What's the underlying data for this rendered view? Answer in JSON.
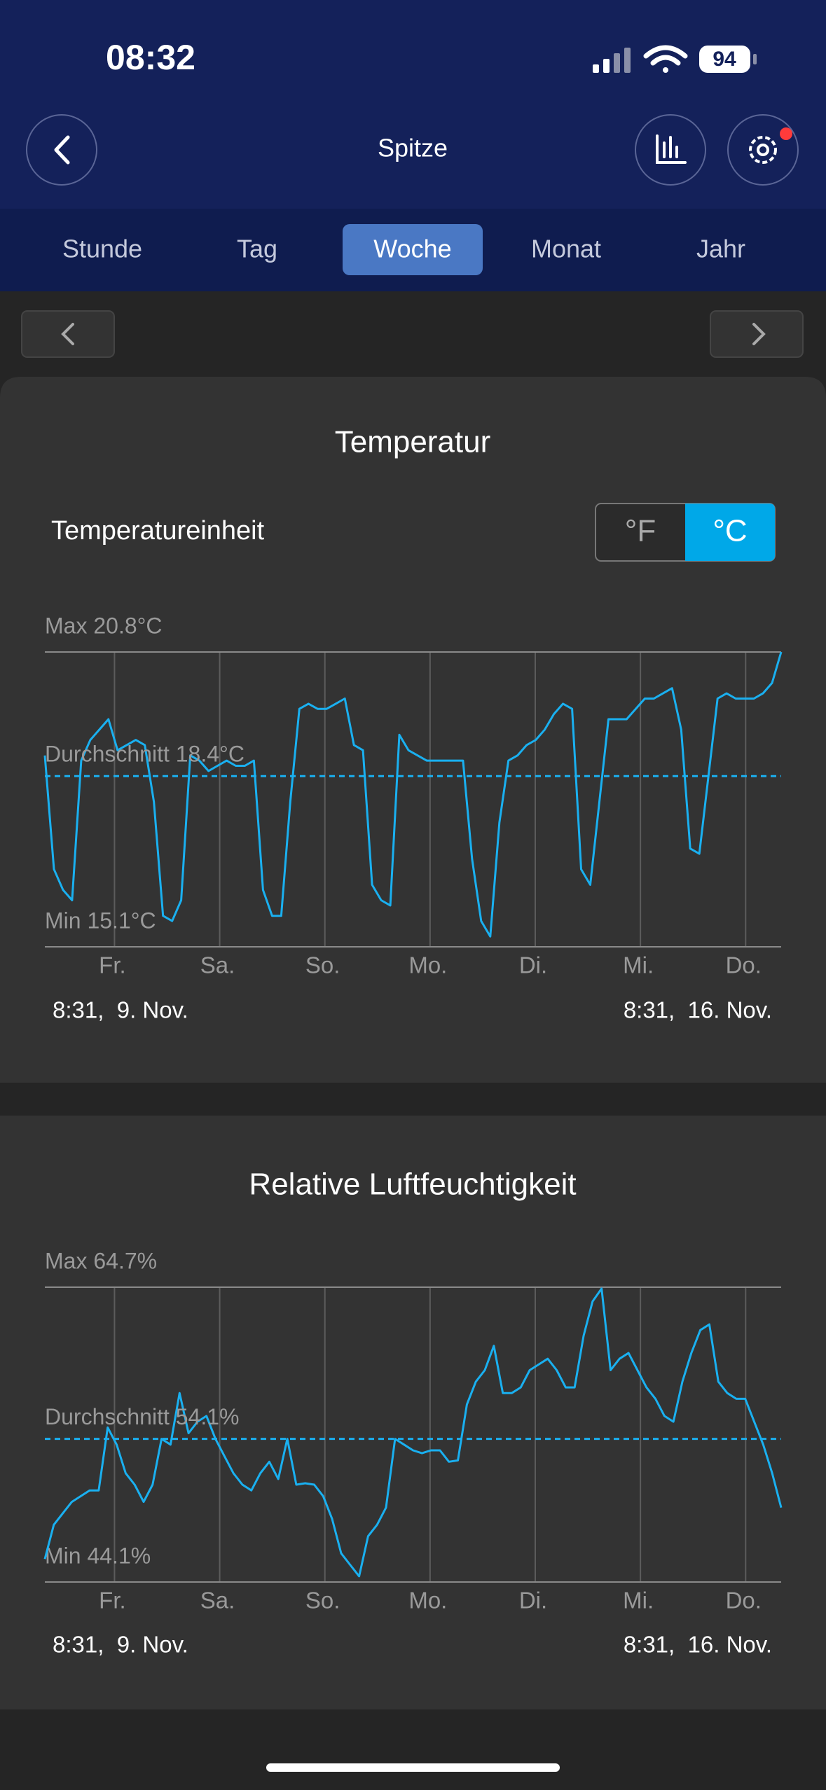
{
  "status": {
    "time": "08:32",
    "battery": 94
  },
  "header": {
    "title": "Spitze"
  },
  "tabs": [
    "Stunde",
    "Tag",
    "Woche",
    "Monat",
    "Jahr"
  ],
  "active_tab": 2,
  "unit_toggle": {
    "label": "Temperatureinheit",
    "options": [
      "°F",
      "°C"
    ],
    "selected": 1
  },
  "chart_data": [
    {
      "type": "line",
      "title": "Temperatur",
      "color": "#1ab0f0",
      "x_labels": [
        "Fr.",
        "Sa.",
        "So.",
        "Mo.",
        "Di.",
        "Mi.",
        "Do."
      ],
      "start_label": "8:31,  9. Nov.",
      "end_label": "8:31,  16. Nov.",
      "ylim": [
        15.1,
        20.8
      ],
      "yticks": [
        {
          "value": 15.1,
          "label": "Min 15.1°C"
        },
        {
          "value": 20.8,
          "label": "Max 20.8°C"
        }
      ],
      "average": {
        "value": 18.4,
        "label": "Durchschnitt 18.4°C"
      },
      "grid": true,
      "values": [
        18.8,
        16.6,
        16.2,
        16.0,
        18.7,
        19.1,
        19.3,
        19.5,
        18.9,
        19.0,
        19.1,
        19.0,
        17.9,
        15.7,
        15.6,
        16.0,
        18.8,
        18.7,
        18.5,
        18.6,
        18.7,
        18.6,
        18.6,
        18.7,
        16.2,
        15.7,
        15.7,
        17.9,
        19.7,
        19.8,
        19.7,
        19.7,
        19.8,
        19.9,
        19.0,
        18.9,
        16.3,
        16.0,
        15.9,
        19.2,
        18.9,
        18.8,
        18.7,
        18.7,
        18.7,
        18.7,
        18.7,
        16.8,
        15.6,
        15.3,
        17.5,
        18.7,
        18.8,
        19.0,
        19.1,
        19.3,
        19.6,
        19.8,
        19.7,
        16.6,
        16.3,
        17.9,
        19.5,
        19.5,
        19.5,
        19.7,
        19.9,
        19.9,
        20.0,
        20.1,
        19.3,
        17.0,
        16.9,
        18.4,
        19.9,
        20.0,
        19.9,
        19.9,
        19.9,
        20.0,
        20.2,
        20.8
      ]
    },
    {
      "type": "line",
      "title": "Relative Luftfeuchtigkeit",
      "color": "#1ab0f0",
      "x_labels": [
        "Fr.",
        "Sa.",
        "So.",
        "Mo.",
        "Di.",
        "Mi.",
        "Do."
      ],
      "start_label": "8:31,  9. Nov.",
      "end_label": "8:31,  16. Nov.",
      "ylim": [
        44.1,
        64.7
      ],
      "yticks": [
        {
          "value": 44.1,
          "label": "Min 44.1%"
        },
        {
          "value": 64.7,
          "label": "Max 64.7%"
        }
      ],
      "average": {
        "value": 54.1,
        "label": "Durchschnitt 54.1%"
      },
      "grid": true,
      "values": [
        45.7,
        48.1,
        48.9,
        49.7,
        50.1,
        50.5,
        50.5,
        54.9,
        53.7,
        51.7,
        50.9,
        49.7,
        50.9,
        54.1,
        53.7,
        57.3,
        54.5,
        55.3,
        55.7,
        54.1,
        52.9,
        51.7,
        50.9,
        50.5,
        51.7,
        52.5,
        51.3,
        54.1,
        50.9,
        51.0,
        50.9,
        50.1,
        48.5,
        46.1,
        45.3,
        44.5,
        47.3,
        48.1,
        49.3,
        54.1,
        53.7,
        53.3,
        53.1,
        53.3,
        53.3,
        52.5,
        52.6,
        56.5,
        58.1,
        58.9,
        60.6,
        57.3,
        57.3,
        57.7,
        58.9,
        59.3,
        59.7,
        58.9,
        57.7,
        57.7,
        61.3,
        63.7,
        64.6,
        58.9,
        59.7,
        60.1,
        58.9,
        57.7,
        56.9,
        55.7,
        55.3,
        58.1,
        60.1,
        61.7,
        62.1,
        58.1,
        57.3,
        56.9,
        56.9,
        55.3,
        53.7,
        51.7,
        49.3
      ]
    }
  ]
}
